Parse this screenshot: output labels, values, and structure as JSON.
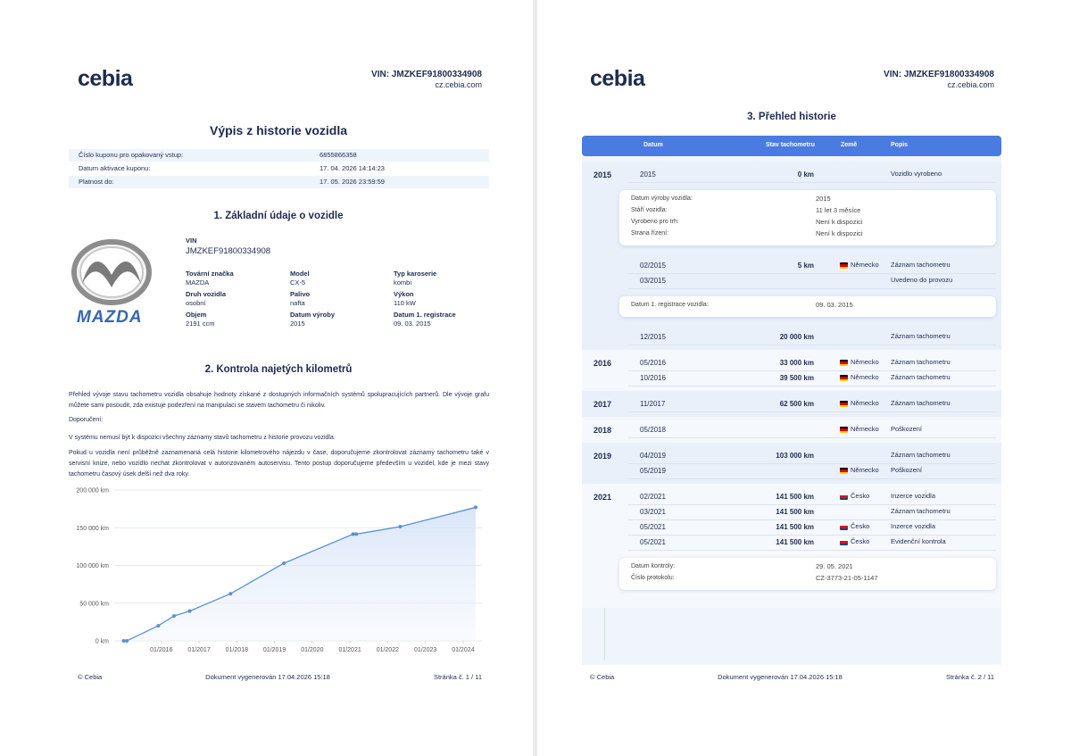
{
  "page1": {
    "logo": "cebia",
    "vin": "VIN: JMZKEF91800334908",
    "site": "cz.cebia.com",
    "title": "Výpis z historie vozidla",
    "coupon_rows": [
      [
        "Číslo kuponu pro opakovaný vstup:",
        "6855866358"
      ],
      [
        "Datum aktivace kuponu:",
        "17. 04. 2026 14:14:23"
      ],
      [
        "Platnost do:",
        "17. 05. 2026 23:59:59"
      ]
    ],
    "section1": "1. Základní údaje o vozidle",
    "brand_logo": "MAZDA",
    "vin_label": "VIN",
    "vin_value": "JMZKEF91800334908",
    "fields": [
      {
        "label": "Tovární značka",
        "value": "MAZDA"
      },
      {
        "label": "Model",
        "value": "CX-5"
      },
      {
        "label": "Typ karoserie",
        "value": "kombi"
      },
      {
        "label": "Druh vozidla",
        "value": "osobní"
      },
      {
        "label": "Palivo",
        "value": "nafta"
      },
      {
        "label": "Výkon",
        "value": "110 kW"
      },
      {
        "label": "Objem",
        "value": "2191 ccm"
      },
      {
        "label": "Datum výroby",
        "value": "2015"
      },
      {
        "label": "Datum 1. registrace",
        "value": "09. 03. 2015"
      }
    ],
    "section2": "2. Kontrola najetých kilometrů",
    "paragraphs": [
      "Přehled vývoje stavu tachometru vozidla obsahuje hodnoty získané z dostupných informačních systémů spolupracujících partnerů. Dle vývoje grafu můžete sami posoudit, zda existuje podezření na manipulaci se stavem tachometru či nikoliv.",
      "Doporučení:",
      "V systému nemusí být k dispozici všechny záznamy stavů tachometru z historie provozu vozidla.",
      "Pokud u vozidla není průběžně zaznamenaná celá historie kilometrového nájezdu v čase, doporučujeme zkontrolovat záznamy tachometru také v servisní knize, nebo vozidlo nechat zkontrolovat v autorizovaném autoservisu. Tento postup doporučujeme především u vozidel, kde je mezi stavy tachometru časový úsek delší než dva roky."
    ],
    "footer": {
      "left": "© Cebia",
      "center": "Dokument vygenerován 17.04.2026 15:18",
      "right": "Stránka č. 1 / 11"
    }
  },
  "chart_data": {
    "type": "line",
    "x": [
      "01/2015",
      "02/2015",
      "12/2015",
      "05/2016",
      "10/2016",
      "11/2017",
      "04/2019",
      "02/2021",
      "03/2021",
      "05/2022",
      "05/2024"
    ],
    "values": [
      0,
      5,
      20000,
      33000,
      39500,
      62500,
      103000,
      141500,
      141500,
      151500,
      177000
    ],
    "color": "#5b8fd6",
    "xlim": [
      "10/2014",
      "07/2024"
    ],
    "xticks": [
      "01/2016",
      "01/2017",
      "01/2018",
      "01/2019",
      "01/2020",
      "01/2021",
      "01/2022",
      "01/2023",
      "01/2024"
    ],
    "ylim": [
      0,
      200000
    ],
    "yticks": [
      {
        "value": 0,
        "label": "0 km"
      },
      {
        "value": 50000,
        "label": "50 000 km"
      },
      {
        "value": 100000,
        "label": "100 000 km"
      },
      {
        "value": 150000,
        "label": "150 000 km"
      },
      {
        "value": 200000,
        "label": "200 000 km"
      }
    ],
    "grid": true
  },
  "page2": {
    "logo": "cebia",
    "vin": "VIN: JMZKEF91800334908",
    "site": "cz.cebia.com",
    "section3": "3. Přehled historie",
    "columns": [
      "Datum",
      "Stav tachometru",
      "Země",
      "Popis"
    ],
    "years": [
      {
        "year": "2015",
        "items": [
          {
            "date": "2015",
            "km": "0 km",
            "desc": "Vozidlo vyrobeno"
          },
          {
            "details": [
              [
                "Datum výroby vozidla:",
                "2015"
              ],
              [
                "Stáří vozidla:",
                "11 let 3 měsíce"
              ],
              [
                "Vyrobeno pro trh:",
                "Není k dispozici"
              ],
              [
                "Strana řízení:",
                "Není k dispozici"
              ]
            ]
          },
          {
            "date": "02/2015",
            "km": "5 km",
            "country": "Německo",
            "flag": [
              "#000000",
              "#dd0000",
              "#ffce00"
            ],
            "desc": "Záznam tachometru"
          },
          {
            "date": "03/2015",
            "desc": "Uvedeno do provozu"
          },
          {
            "details": [
              [
                "Datum 1. registrace vozidla:",
                "09. 03. 2015"
              ]
            ]
          },
          {
            "date": "12/2015",
            "km": "20 000 km",
            "desc": "Záznam tachometru"
          }
        ]
      },
      {
        "year": "2016",
        "items": [
          {
            "date": "05/2016",
            "km": "33 000 km",
            "country": "Německo",
            "flag": [
              "#000000",
              "#dd0000",
              "#ffce00"
            ],
            "desc": "Záznam tachometru"
          },
          {
            "date": "10/2016",
            "km": "39 500 km",
            "country": "Německo",
            "flag": [
              "#000000",
              "#dd0000",
              "#ffce00"
            ],
            "desc": "Záznam tachometru"
          }
        ]
      },
      {
        "year": "2017",
        "items": [
          {
            "date": "11/2017",
            "km": "62 500 km",
            "country": "Německo",
            "flag": [
              "#000000",
              "#dd0000",
              "#ffce00"
            ],
            "desc": "Záznam tachometru"
          }
        ]
      },
      {
        "year": "2018",
        "items": [
          {
            "date": "05/2018",
            "country": "Německo",
            "flag": [
              "#000000",
              "#dd0000",
              "#ffce00"
            ],
            "desc": "Poškození"
          }
        ]
      },
      {
        "year": "2019",
        "items": [
          {
            "date": "04/2019",
            "km": "103 000 km",
            "desc": "Záznam tachometru"
          },
          {
            "date": "05/2019",
            "country": "Německo",
            "flag": [
              "#000000",
              "#dd0000",
              "#ffce00"
            ],
            "desc": "Poškození"
          }
        ]
      },
      {
        "year": "2021",
        "items": [
          {
            "date": "02/2021",
            "km": "141 500 km",
            "country": "Česko",
            "flag": [
              "#ffffff",
              "#d7141a",
              "#11457e"
            ],
            "desc": "Inzerce vozidla"
          },
          {
            "date": "03/2021",
            "km": "141 500 km",
            "desc": "Záznam tachometru"
          },
          {
            "date": "05/2021",
            "km": "141 500 km",
            "country": "Česko",
            "flag": [
              "#ffffff",
              "#d7141a",
              "#11457e"
            ],
            "desc": "Inzerce vozidla"
          },
          {
            "date": "05/2021",
            "km": "141 500 km",
            "country": "Česko",
            "flag": [
              "#ffffff",
              "#d7141a",
              "#11457e"
            ],
            "desc": "Evidenční kontrola"
          },
          {
            "details": [
              [
                "Datum kontroly:",
                "29. 05. 2021"
              ],
              [
                "Číslo protokolu:",
                "CZ-3773-21-05-1147"
              ]
            ]
          }
        ]
      }
    ],
    "footer": {
      "left": "© Cebia",
      "center": "Dokument vygenerován 17.04.2026 15:18",
      "right": "Stránka č. 2 / 11"
    }
  }
}
